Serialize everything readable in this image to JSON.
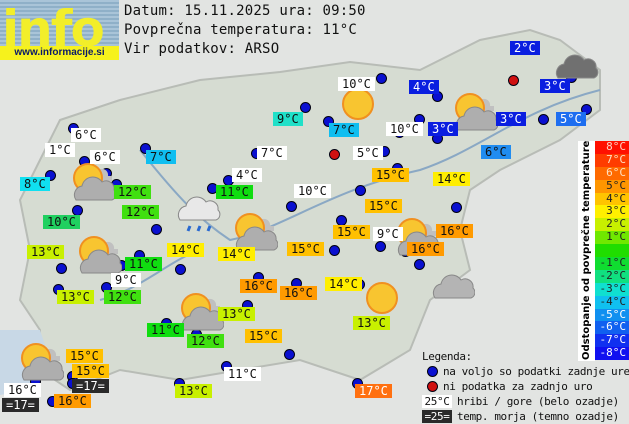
{
  "header": {
    "logo_text": "info",
    "logo_url": "www.informacije.si",
    "date_line": "Datum: 15.11.2025 ura: 09:50",
    "avg_temp_line": "Povprečna temperatura: 11°C",
    "source_line": "Vir podatkov: ARSO"
  },
  "colors": {
    "station_ok": "#0a10d0",
    "station_missing": "#d01010"
  },
  "labels": [
    {
      "t": "10°C",
      "bg": "#ffffff",
      "fg": "#111"
    },
    {
      "t": "2°C",
      "bg": "#0a1ee0",
      "fg": "#fff"
    },
    {
      "t": "4°C",
      "bg": "#0a1ee0",
      "fg": "#fff"
    },
    {
      "t": "3°C",
      "bg": "#0a1ee0",
      "fg": "#fff"
    },
    {
      "t": "3°C",
      "bg": "#0a1ee0",
      "fg": "#fff"
    },
    {
      "t": "10°C",
      "bg": "#ffffff",
      "fg": "#111"
    },
    {
      "t": "3°C",
      "bg": "#0a1ee0",
      "fg": "#fff"
    },
    {
      "t": "5°C",
      "bg": "#1e6ef0",
      "fg": "#fff"
    },
    {
      "t": "6°C",
      "bg": "#208cf0",
      "fg": "#111"
    },
    {
      "t": "9°C",
      "bg": "#20e0c8",
      "fg": "#111"
    },
    {
      "t": "7°C",
      "bg": "#10beF0",
      "fg": "#111"
    },
    {
      "t": "7°C",
      "bg": "#ffffff",
      "fg": "#111"
    },
    {
      "t": "5°C",
      "bg": "#ffffff",
      "fg": "#111"
    },
    {
      "t": "4°C",
      "bg": "#ffffff",
      "fg": "#111"
    },
    {
      "t": "11°C",
      "bg": "#10dd10",
      "fg": "#111"
    },
    {
      "t": "10°C",
      "bg": "#ffffff",
      "fg": "#111"
    },
    {
      "t": "15°C",
      "bg": "#ffc000",
      "fg": "#111"
    },
    {
      "t": "15°C",
      "bg": "#ffc000",
      "fg": "#111"
    },
    {
      "t": "14°C",
      "bg": "#ffee00",
      "fg": "#111"
    },
    {
      "t": "15°C",
      "bg": "#ffc000",
      "fg": "#111"
    },
    {
      "t": "9°C",
      "bg": "#ffffff",
      "fg": "#111"
    },
    {
      "t": "15°C",
      "bg": "#ffc000",
      "fg": "#111"
    },
    {
      "t": "16°C",
      "bg": "#ff9a00",
      "fg": "#111"
    },
    {
      "t": "16°C",
      "bg": "#ff9a00",
      "fg": "#111"
    },
    {
      "t": "14°C",
      "bg": "#ffee00",
      "fg": "#111"
    },
    {
      "t": "14°C",
      "bg": "#ffee00",
      "fg": "#111"
    },
    {
      "t": "6°C",
      "bg": "#ffffff",
      "fg": "#111"
    },
    {
      "t": "1°C",
      "bg": "#ffffff",
      "fg": "#111"
    },
    {
      "t": "6°C",
      "bg": "#ffffff",
      "fg": "#111"
    },
    {
      "t": "7°C",
      "bg": "#10beF0",
      "fg": "#111"
    },
    {
      "t": "8°C",
      "bg": "#10e0f0",
      "fg": "#111"
    },
    {
      "t": "12°C",
      "bg": "#40e010",
      "fg": "#111"
    },
    {
      "t": "12°C",
      "bg": "#40e010",
      "fg": "#111"
    },
    {
      "t": "10°C",
      "bg": "#20d060",
      "fg": "#111"
    },
    {
      "t": "13°C",
      "bg": "#c8f000",
      "fg": "#111"
    },
    {
      "t": "11°C",
      "bg": "#10dd10",
      "fg": "#111"
    },
    {
      "t": "9°C",
      "bg": "#ffffff",
      "fg": "#111"
    },
    {
      "t": "13°C",
      "bg": "#c8f000",
      "fg": "#111"
    },
    {
      "t": "12°C",
      "bg": "#40e010",
      "fg": "#111"
    },
    {
      "t": "11°C",
      "bg": "#10dd10",
      "fg": "#111"
    },
    {
      "t": "12°C",
      "bg": "#40e010",
      "fg": "#111"
    },
    {
      "t": "13°C",
      "bg": "#c8f000",
      "fg": "#111"
    },
    {
      "t": "16°C",
      "bg": "#ff9a00",
      "fg": "#111"
    },
    {
      "t": "16°C",
      "bg": "#ff9a00",
      "fg": "#111"
    },
    {
      "t": "14°C",
      "bg": "#ffee00",
      "fg": "#111"
    },
    {
      "t": "13°C",
      "bg": "#c8f000",
      "fg": "#111"
    },
    {
      "t": "15°C",
      "bg": "#ffc000",
      "fg": "#111"
    },
    {
      "t": "11°C",
      "bg": "#ffffff",
      "fg": "#111"
    },
    {
      "t": "13°C",
      "bg": "#c8f000",
      "fg": "#111"
    },
    {
      "t": "17°C",
      "bg": "#ff7010",
      "fg": "#fff"
    },
    {
      "t": "15°C",
      "bg": "#ffc000",
      "fg": "#111"
    },
    {
      "t": "15°C",
      "bg": "#ffc000",
      "fg": "#111"
    },
    {
      "t": "=17=",
      "bg": "#2a2a2a",
      "fg": "#fff"
    },
    {
      "t": "16°C",
      "bg": "#ffffff",
      "fg": "#111"
    },
    {
      "t": "=17=",
      "bg": "#2a2a2a",
      "fg": "#fff"
    },
    {
      "t": "16°C",
      "bg": "#ff9a00",
      "fg": "#111"
    }
  ],
  "weather_icons": [
    "sunny",
    "partly-cloudy",
    "overcast",
    "partly-cloudy",
    "rain",
    "partly-cloudy",
    "partly-cloudy",
    "partly-cloudy",
    "partly-cloudy",
    "sunny",
    "cloudy",
    "partly-cloudy"
  ],
  "scale": {
    "title": "Odstopanje od povprečne temperature:",
    "steps": [
      {
        "t": "8°C",
        "bg": "#ff1000",
        "fg": "#ffd0c0"
      },
      {
        "t": "7°C",
        "bg": "#ff3c00",
        "fg": "#ffe0c0"
      },
      {
        "t": "6°C",
        "bg": "#ff6a00",
        "fg": "#ffe0c0"
      },
      {
        "t": "5°C",
        "bg": "#ff9600",
        "fg": "#222"
      },
      {
        "t": "4°C",
        "bg": "#ffc400",
        "fg": "#222"
      },
      {
        "t": "3°C",
        "bg": "#fff000",
        "fg": "#222"
      },
      {
        "t": "2°C",
        "bg": "#c8f000",
        "fg": "#222"
      },
      {
        "t": "1°C",
        "bg": "#70e800",
        "fg": "#222"
      },
      {
        "t": "",
        "bg": "#20dd00",
        "fg": "#222"
      },
      {
        "t": "-1°C",
        "bg": "#10dd30",
        "fg": "#222"
      },
      {
        "t": "-2°C",
        "bg": "#10e080",
        "fg": "#222"
      },
      {
        "t": "-3°C",
        "bg": "#10e0d0",
        "fg": "#222"
      },
      {
        "t": "-4°C",
        "bg": "#10c0f0",
        "fg": "#222"
      },
      {
        "t": "-5°C",
        "bg": "#1090f0",
        "fg": "#fff"
      },
      {
        "t": "-6°C",
        "bg": "#1060f0",
        "fg": "#fff"
      },
      {
        "t": "-7°C",
        "bg": "#1030f0",
        "fg": "#fff"
      },
      {
        "t": "-8°C",
        "bg": "#1010f0",
        "fg": "#fff"
      }
    ]
  },
  "legend": {
    "title": "Legenda:",
    "ok": "na voljo so podatki zadnje ure",
    "missing": "ni podatka za zadnjo uro",
    "mountain_sample": "25°C",
    "mountain": "hribi / gore (belo ozadje)",
    "sea_sample": "=25=",
    "sea": "temp. morja (temno ozadje)"
  }
}
